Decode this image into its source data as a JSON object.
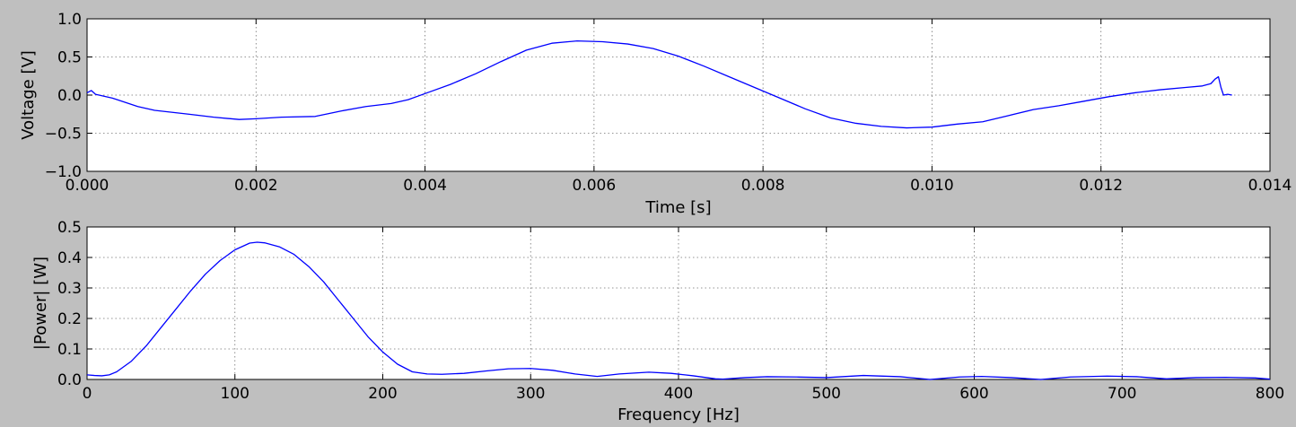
{
  "chart_data": [
    {
      "type": "line",
      "xlabel": "Time [s]",
      "ylabel": "Voltage [V]",
      "xlim": [
        0,
        0.014
      ],
      "ylim": [
        -1.0,
        1.0
      ],
      "xticks": [
        "0.000",
        "0.002",
        "0.004",
        "0.006",
        "0.008",
        "0.010",
        "0.012",
        "0.014"
      ],
      "yticks": [
        "−1.0",
        "−0.5",
        "0.0",
        "0.5",
        "1.0"
      ],
      "grid": true,
      "line_color": "#0000ff",
      "series": [
        {
          "x": [
            0,
            5e-05,
            0.0001,
            0.0003,
            0.0006,
            0.0008,
            0.0012,
            0.0015,
            0.0018,
            0.002,
            0.0023,
            0.0027,
            0.003,
            0.0033,
            0.0036,
            0.0038,
            0.004,
            0.0043,
            0.0046,
            0.0049,
            0.0052,
            0.0055,
            0.0058,
            0.0061,
            0.0064,
            0.0067,
            0.007,
            0.0073,
            0.0076,
            0.0079,
            0.0082,
            0.0085,
            0.0088,
            0.0091,
            0.0094,
            0.0097,
            0.01,
            0.0103,
            0.0106,
            0.0109,
            0.0112,
            0.0115,
            0.0118,
            0.0121,
            0.0124,
            0.0127,
            0.013,
            0.0132,
            0.0133,
            0.01335,
            0.01339,
            0.01342,
            0.01345,
            0.0135,
            0.01355
          ],
          "y": [
            0.03,
            0.06,
            0.01,
            -0.04,
            -0.15,
            -0.2,
            -0.25,
            -0.29,
            -0.32,
            -0.31,
            -0.29,
            -0.28,
            -0.21,
            -0.15,
            -0.11,
            -0.06,
            0.02,
            0.14,
            0.28,
            0.44,
            0.59,
            0.68,
            0.71,
            0.7,
            0.67,
            0.61,
            0.51,
            0.38,
            0.24,
            0.1,
            -0.04,
            -0.18,
            -0.3,
            -0.37,
            -0.41,
            -0.43,
            -0.42,
            -0.38,
            -0.35,
            -0.27,
            -0.19,
            -0.14,
            -0.08,
            -0.02,
            0.03,
            0.07,
            0.1,
            0.12,
            0.15,
            0.21,
            0.24,
            0.1,
            0.0,
            0.01,
            0.0
          ]
        }
      ]
    },
    {
      "type": "line",
      "xlabel": "Frequency [Hz]",
      "ylabel": "|Power| [W]",
      "xlim": [
        0,
        800
      ],
      "ylim": [
        0,
        0.5
      ],
      "xticks": [
        "0",
        "100",
        "200",
        "300",
        "400",
        "500",
        "600",
        "700",
        "800"
      ],
      "yticks": [
        "0.0",
        "0.1",
        "0.2",
        "0.3",
        "0.4",
        "0.5"
      ],
      "grid": true,
      "line_color": "#0000ff",
      "series": [
        {
          "x": [
            0,
            5,
            10,
            15,
            20,
            30,
            40,
            50,
            60,
            70,
            80,
            90,
            100,
            110,
            115,
            120,
            130,
            140,
            150,
            160,
            170,
            180,
            190,
            200,
            210,
            220,
            230,
            240,
            255,
            270,
            285,
            300,
            315,
            330,
            345,
            360,
            380,
            395,
            410,
            425,
            430,
            445,
            460,
            480,
            500,
            525,
            550,
            570,
            590,
            605,
            625,
            645,
            665,
            690,
            710,
            730,
            750,
            770,
            790,
            800
          ],
          "y": [
            0.015,
            0.013,
            0.012,
            0.015,
            0.025,
            0.06,
            0.11,
            0.17,
            0.23,
            0.29,
            0.345,
            0.39,
            0.425,
            0.447,
            0.45,
            0.448,
            0.435,
            0.41,
            0.37,
            0.32,
            0.26,
            0.2,
            0.14,
            0.09,
            0.05,
            0.025,
            0.018,
            0.017,
            0.02,
            0.028,
            0.035,
            0.036,
            0.03,
            0.018,
            0.01,
            0.018,
            0.024,
            0.02,
            0.012,
            0.002,
            0.001,
            0.006,
            0.009,
            0.008,
            0.006,
            0.013,
            0.009,
            0.0,
            0.008,
            0.01,
            0.006,
            0.0,
            0.008,
            0.011,
            0.009,
            0.002,
            0.006,
            0.007,
            0.005,
            0.001
          ]
        }
      ]
    }
  ]
}
